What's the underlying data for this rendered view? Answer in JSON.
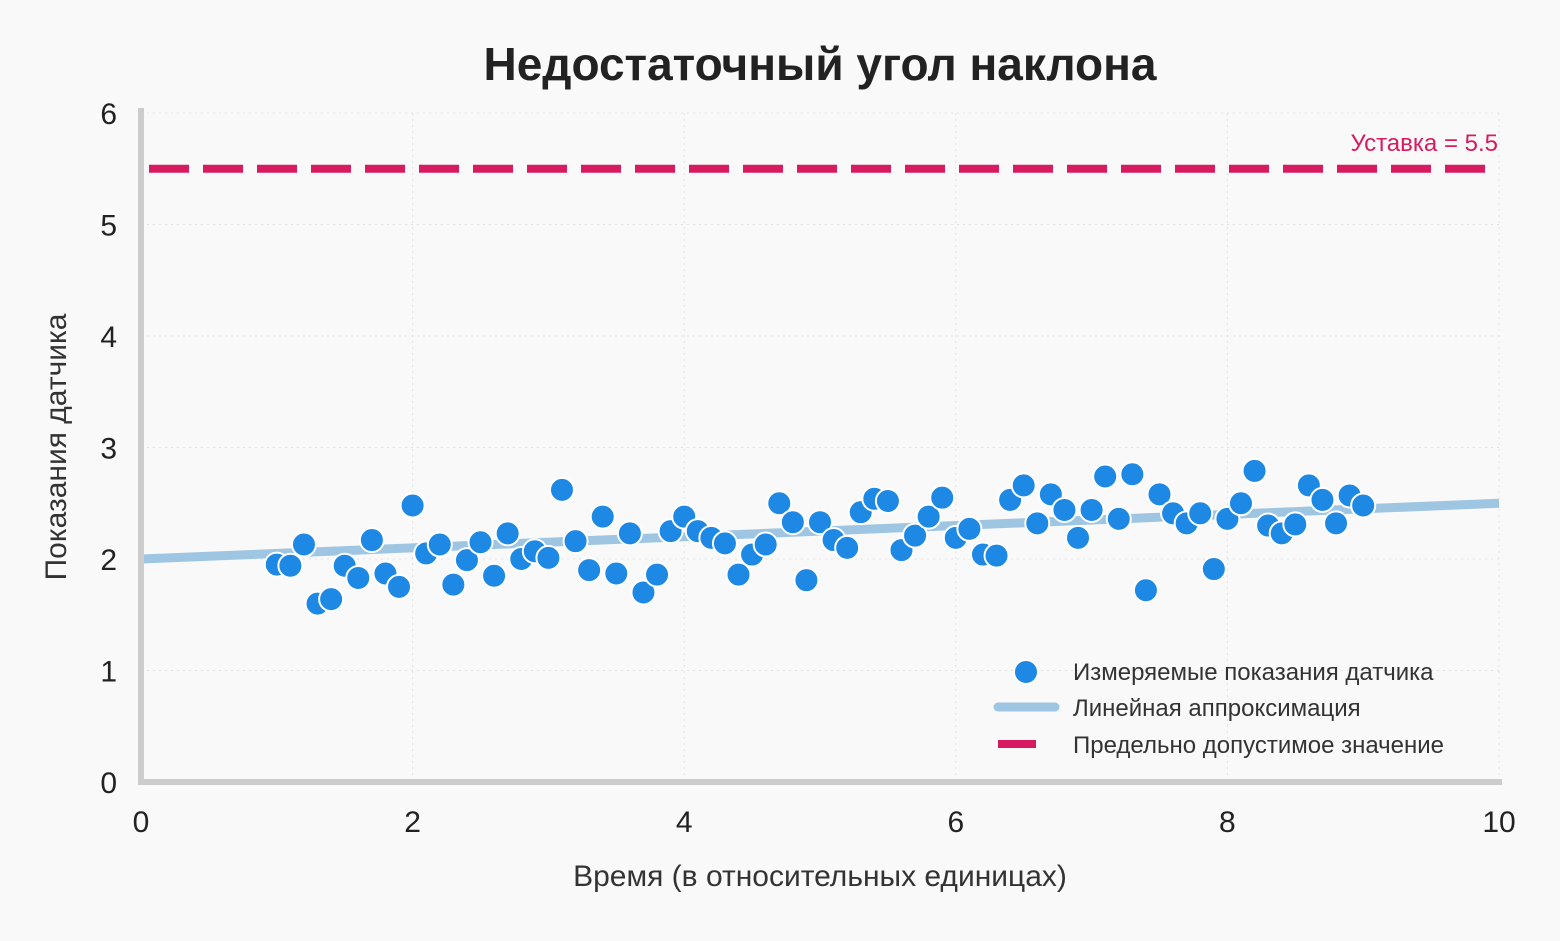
{
  "chart_data": {
    "type": "scatter",
    "title": "Недостаточный угол наклона",
    "xlabel": "Время (в относительных единицах)",
    "ylabel": "Показания датчика",
    "xlim": [
      0,
      10
    ],
    "ylim": [
      0,
      6
    ],
    "xticks": [
      "0",
      "2",
      "4",
      "6",
      "8",
      "10"
    ],
    "yticks": [
      "0",
      "1",
      "2",
      "3",
      "4",
      "5",
      "6"
    ],
    "grid": true,
    "legend_position": "bottom-right",
    "series": [
      {
        "name": "Измеряемые показания датчика",
        "type": "scatter",
        "color": "#1e88e5",
        "x": [
          1.0,
          1.1,
          1.2,
          1.3,
          1.4,
          1.5,
          1.6,
          1.7,
          1.8,
          1.9,
          2.0,
          2.1,
          2.2,
          2.3,
          2.4,
          2.5,
          2.6,
          2.7,
          2.8,
          2.9,
          3.0,
          3.1,
          3.2,
          3.3,
          3.4,
          3.5,
          3.6,
          3.7,
          3.8,
          3.9,
          4.0,
          4.1,
          4.2,
          4.3,
          4.4,
          4.5,
          4.6,
          4.7,
          4.8,
          4.9,
          5.0,
          5.1,
          5.2,
          5.3,
          5.4,
          5.5,
          5.6,
          5.7,
          5.8,
          5.9,
          6.0,
          6.1,
          6.2,
          6.3,
          6.4,
          6.5,
          6.6,
          6.7,
          6.8,
          6.9,
          7.0,
          7.1,
          7.2,
          7.3,
          7.4,
          7.5,
          7.6,
          7.7,
          7.8,
          7.9,
          8.0,
          8.1,
          8.2,
          8.3,
          8.4,
          8.5,
          8.6,
          8.7,
          8.8,
          8.9,
          9.0
        ],
        "y": [
          1.95,
          1.94,
          2.13,
          1.6,
          1.64,
          1.94,
          1.83,
          2.17,
          1.87,
          1.75,
          2.48,
          2.05,
          2.13,
          1.77,
          1.99,
          2.15,
          1.85,
          2.23,
          2.0,
          2.07,
          2.01,
          2.62,
          2.16,
          1.9,
          2.38,
          1.87,
          2.23,
          1.7,
          1.86,
          2.25,
          2.38,
          2.25,
          2.19,
          2.14,
          1.86,
          2.04,
          2.13,
          2.5,
          2.33,
          1.81,
          2.33,
          2.17,
          2.1,
          2.42,
          2.54,
          2.52,
          2.08,
          2.21,
          2.38,
          2.55,
          2.19,
          2.27,
          2.04,
          2.03,
          2.53,
          2.66,
          2.32,
          2.58,
          2.44,
          2.19,
          2.44,
          2.74,
          2.36,
          2.76,
          1.72,
          2.58,
          2.41,
          2.32,
          2.41,
          1.91,
          2.36,
          2.5,
          2.79,
          2.3,
          2.23,
          2.31,
          2.66,
          2.53,
          2.32,
          2.57,
          2.48
        ]
      },
      {
        "name": "Линейная аппроксимация",
        "type": "line",
        "color": "#9ec5e2",
        "x": [
          0,
          10
        ],
        "y": [
          2.0,
          2.5
        ]
      },
      {
        "name": "Предельно допустимое значение",
        "type": "hline",
        "color": "#d81b60",
        "y": 5.5
      }
    ],
    "annotations": [
      {
        "text": "Уставка = 5.5",
        "color": "#d81b60"
      }
    ]
  }
}
